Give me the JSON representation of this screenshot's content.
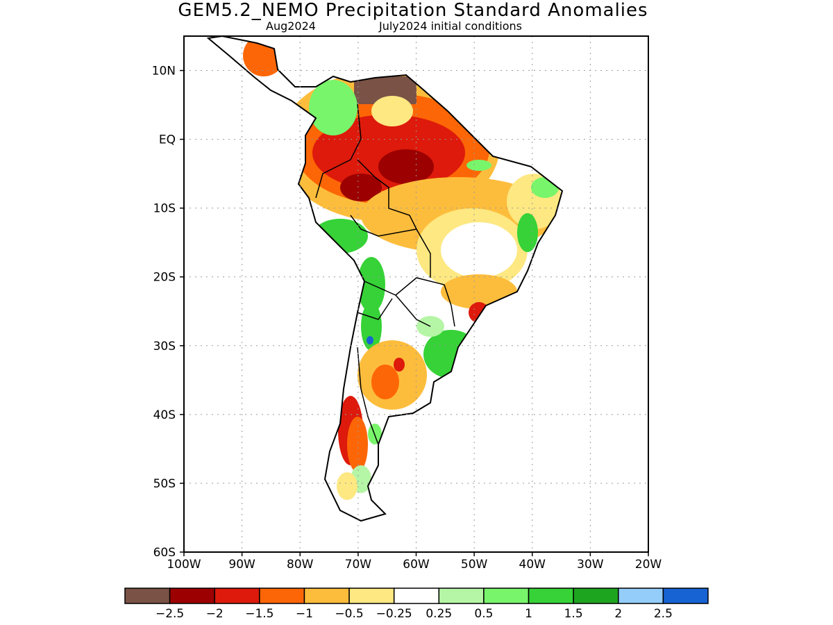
{
  "title": "GEM5.2_NEMO Precipitation Standard Anomalies",
  "subtitle_left": "Aug2024",
  "subtitle_right": "July2024 initial conditions",
  "map": {
    "lon_range": [
      -100,
      -20
    ],
    "lat_range": [
      -60,
      15
    ],
    "y_ticks": [
      {
        "lat": 10,
        "label": "10N"
      },
      {
        "lat": 0,
        "label": "EQ"
      },
      {
        "lat": -10,
        "label": "10S"
      },
      {
        "lat": -20,
        "label": "20S"
      },
      {
        "lat": -30,
        "label": "30S"
      },
      {
        "lat": -40,
        "label": "40S"
      },
      {
        "lat": -50,
        "label": "50S"
      },
      {
        "lat": -60,
        "label": "60S"
      }
    ],
    "x_ticks": [
      {
        "lon": -100,
        "label": "100W"
      },
      {
        "lon": -90,
        "label": "90W"
      },
      {
        "lon": -80,
        "label": "80W"
      },
      {
        "lon": -70,
        "label": "70W"
      },
      {
        "lon": -60,
        "label": "60W"
      },
      {
        "lon": -50,
        "label": "50W"
      },
      {
        "lon": -40,
        "label": "40W"
      },
      {
        "lon": -30,
        "label": "30W"
      },
      {
        "lon": -20,
        "label": "20W"
      }
    ],
    "grid": true
  },
  "colorbar": {
    "colors": [
      "#7a5246",
      "#9c0000",
      "#dd1a0b",
      "#fd6606",
      "#fdbd3c",
      "#fde882",
      "#ffffff",
      "#b5f5a6",
      "#78f56b",
      "#36d237",
      "#1ea51f",
      "#94cdfa",
      "#1763d3"
    ],
    "labels": [
      "−2.5",
      "−2",
      "−1.5",
      "−1",
      "−0.5",
      "−0.25",
      "0.25",
      "0.5",
      "1",
      "1.5",
      "2",
      "2.5"
    ]
  }
}
